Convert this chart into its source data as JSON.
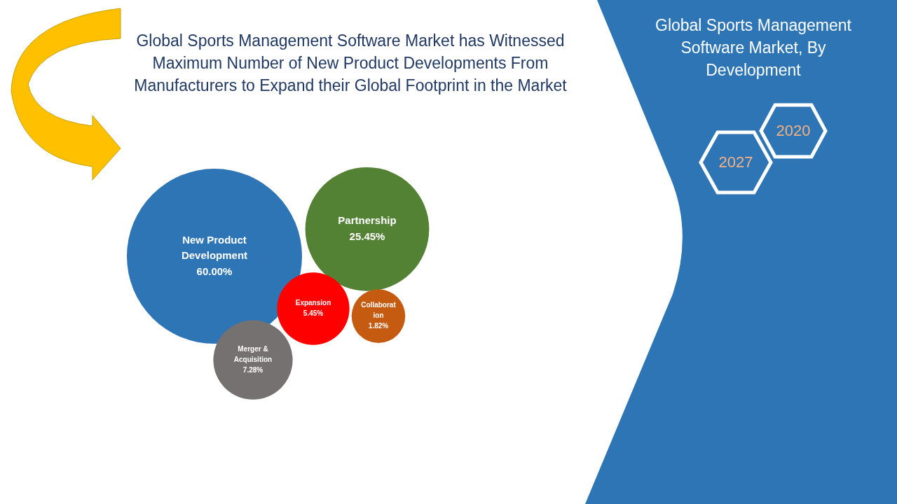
{
  "chart_data": {
    "type": "other",
    "title": "Global Sports Management Software Market has Witnessed Maximum Number of New Product Developments From Manufacturers to Expand their Global Footprint in the Market",
    "subtitle": "Global Sports Management Software Market, By Development",
    "categories": [
      "New Product Development",
      "Partnership",
      "Expansion",
      "Collaboration",
      "Merger & Acquisition"
    ],
    "values": [
      60,
      25.45,
      5.45,
      1.82,
      7.28
    ],
    "value_labels": [
      "60.00%",
      "25.45%",
      "5.45%",
      "1.82%",
      "7.28%"
    ],
    "colors": [
      "#2e75b6",
      "#548235",
      "#ff0000",
      "#c55a11",
      "#767171"
    ],
    "annotations": [
      "2020",
      "2027"
    ]
  }
}
